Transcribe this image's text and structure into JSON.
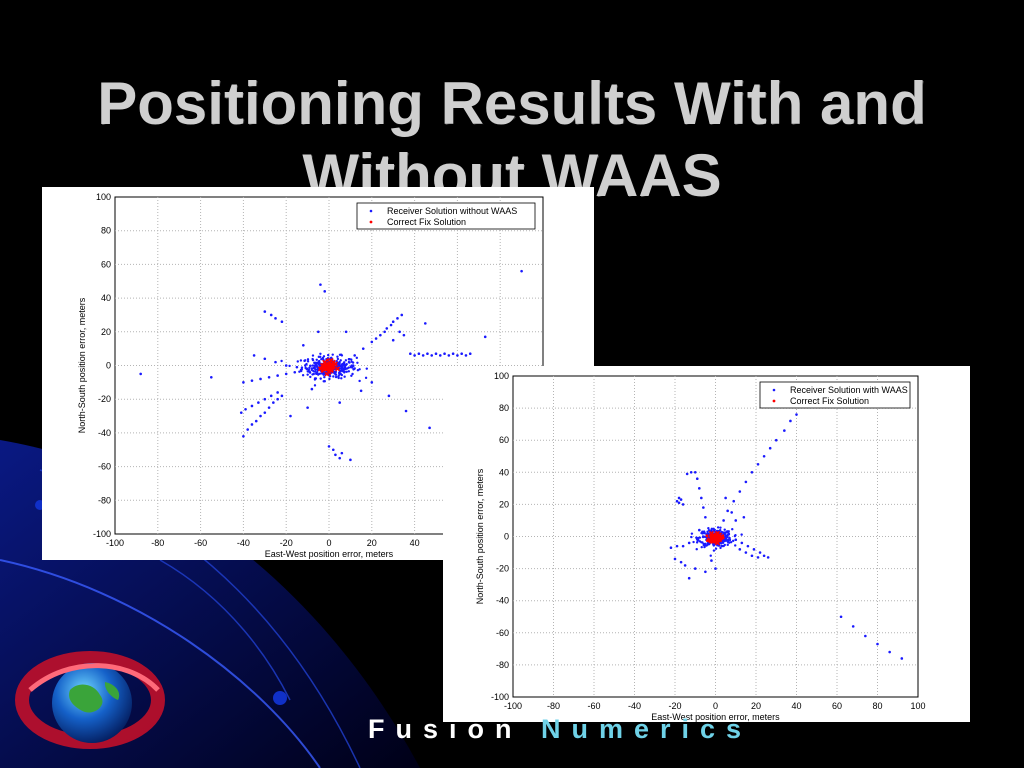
{
  "slide": {
    "title_line1": "Positioning Results With and",
    "title_line2": "Without WAAS"
  },
  "brand": {
    "word1": "Fusion",
    "word2": "Numerics"
  },
  "colors": {
    "background": "#000000",
    "title": "#cfcfcf",
    "receiver_points": "#1a1aff",
    "correct_fix": "#ff0000",
    "grid": "#b4b4b4"
  },
  "chart_data": [
    {
      "type": "scatter",
      "xlabel": "East-West position error, meters",
      "ylabel": "North-South position error, meters",
      "xlim": [
        -100,
        100
      ],
      "ylim": [
        -100,
        100
      ],
      "xticks": [
        "-100",
        "-80",
        "-60",
        "-40",
        "-20",
        "0",
        "20",
        "40",
        "60",
        "80",
        "100"
      ],
      "yticks": [
        "100",
        "80",
        "60",
        "40",
        "20",
        "0",
        "-20",
        "-40",
        "-60",
        "-80",
        "-100"
      ],
      "grid": true,
      "legend_position": "top-right",
      "series": [
        {
          "name": "Receiver Solution without WAAS",
          "color": "#1a1aff",
          "marker": "dot",
          "points": [
            [
              -88,
              -5
            ],
            [
              -55,
              -7
            ],
            [
              -4,
              48
            ],
            [
              -2,
              44
            ],
            [
              -30,
              32
            ],
            [
              -27,
              30
            ],
            [
              -25,
              28
            ],
            [
              -22,
              26
            ],
            [
              -40,
              -42
            ],
            [
              -38,
              -38
            ],
            [
              -36,
              -35
            ],
            [
              -34,
              -33
            ],
            [
              -32,
              -30
            ],
            [
              -30,
              -28
            ],
            [
              -28,
              -25
            ],
            [
              -26,
              -22
            ],
            [
              -24,
              -20
            ],
            [
              -22,
              -18
            ],
            [
              -41,
              -28
            ],
            [
              -39,
              -26
            ],
            [
              -36,
              -24
            ],
            [
              -33,
              -22
            ],
            [
              -30,
              -20
            ],
            [
              -27,
              -18
            ],
            [
              -24,
              -16
            ],
            [
              -40,
              -10
            ],
            [
              -36,
              -9
            ],
            [
              -32,
              -8
            ],
            [
              -28,
              -7
            ],
            [
              -24,
              -6
            ],
            [
              -20,
              -5
            ],
            [
              -16,
              -4
            ],
            [
              -35,
              6
            ],
            [
              -30,
              4
            ],
            [
              -25,
              2
            ],
            [
              -20,
              0
            ],
            [
              -15,
              -1
            ],
            [
              0,
              -48
            ],
            [
              2,
              -50
            ],
            [
              3,
              -53
            ],
            [
              5,
              -55
            ],
            [
              6,
              -52
            ],
            [
              10,
              -56
            ],
            [
              12,
              6
            ],
            [
              16,
              10
            ],
            [
              20,
              14
            ],
            [
              24,
              18
            ],
            [
              27,
              22
            ],
            [
              30,
              26
            ],
            [
              32,
              28
            ],
            [
              34,
              30
            ],
            [
              22,
              16
            ],
            [
              26,
              20
            ],
            [
              29,
              24
            ],
            [
              33,
              20
            ],
            [
              35,
              18
            ],
            [
              30,
              15
            ],
            [
              38,
              7
            ],
            [
              42,
              7
            ],
            [
              46,
              7
            ],
            [
              50,
              7
            ],
            [
              54,
              7
            ],
            [
              58,
              7
            ],
            [
              62,
              7
            ],
            [
              66,
              7
            ],
            [
              40,
              6
            ],
            [
              44,
              6
            ],
            [
              48,
              6
            ],
            [
              52,
              6
            ],
            [
              56,
              6
            ],
            [
              60,
              6
            ],
            [
              64,
              6
            ],
            [
              45,
              25
            ],
            [
              36,
              -27
            ],
            [
              47,
              -37
            ],
            [
              73,
              17
            ],
            [
              90,
              56
            ],
            [
              28,
              -18
            ],
            [
              -18,
              -30
            ],
            [
              -10,
              -25
            ],
            [
              -5,
              20
            ],
            [
              8,
              20
            ],
            [
              15,
              -15
            ],
            [
              20,
              -10
            ],
            [
              -12,
              12
            ],
            [
              -8,
              -14
            ],
            [
              5,
              -22
            ]
          ]
        },
        {
          "name": "Correct Fix Solution",
          "color": "#ff0000",
          "marker": "x",
          "points": [
            [
              -2,
              -2
            ],
            [
              0,
              0
            ],
            [
              2,
              -1
            ],
            [
              -1,
              1
            ],
            [
              1,
              -3
            ],
            [
              -3,
              0
            ],
            [
              3,
              1
            ],
            [
              0,
              -4
            ],
            [
              -2,
              2
            ],
            [
              2,
              2
            ],
            [
              -4,
              -2
            ],
            [
              4,
              -2
            ],
            [
              1,
              3
            ],
            [
              -1,
              -5
            ]
          ]
        }
      ],
      "core_cluster": {
        "center": [
          0,
          -1
        ],
        "spread_x": 14,
        "spread_y": 7
      }
    },
    {
      "type": "scatter",
      "xlabel": "East-West position error, meters",
      "ylabel": "North-South position error, meters",
      "xlim": [
        -100,
        100
      ],
      "ylim": [
        -100,
        100
      ],
      "xticks": [
        "-100",
        "-80",
        "-60",
        "-40",
        "-20",
        "0",
        "20",
        "40",
        "60",
        "80",
        "100"
      ],
      "yticks": [
        "100",
        "80",
        "60",
        "40",
        "20",
        "0",
        "-20",
        "-40",
        "-60",
        "-80",
        "-100"
      ],
      "grid": true,
      "legend_position": "top-right",
      "series": [
        {
          "name": "Receiver Solution with WAAS",
          "color": "#1a1aff",
          "marker": "dot",
          "points": [
            [
              40,
              76
            ],
            [
              37,
              72
            ],
            [
              34,
              66
            ],
            [
              30,
              60
            ],
            [
              27,
              55
            ],
            [
              24,
              50
            ],
            [
              21,
              45
            ],
            [
              18,
              40
            ],
            [
              15,
              34
            ],
            [
              12,
              28
            ],
            [
              9,
              22
            ],
            [
              6,
              16
            ],
            [
              4,
              10
            ],
            [
              -12,
              40
            ],
            [
              -14,
              39
            ],
            [
              -10,
              40
            ],
            [
              -9,
              36
            ],
            [
              -8,
              30
            ],
            [
              -7,
              24
            ],
            [
              -6,
              18
            ],
            [
              -5,
              12
            ],
            [
              -17,
              23
            ],
            [
              -18,
              21
            ],
            [
              -16,
              20
            ],
            [
              -18,
              24
            ],
            [
              -19,
              22
            ],
            [
              62,
              -50
            ],
            [
              68,
              -56
            ],
            [
              74,
              -62
            ],
            [
              80,
              -67
            ],
            [
              86,
              -72
            ],
            [
              92,
              -76
            ],
            [
              10,
              -2
            ],
            [
              13,
              -4
            ],
            [
              16,
              -6
            ],
            [
              19,
              -8
            ],
            [
              22,
              -10
            ],
            [
              24,
              -12
            ],
            [
              26,
              -13
            ],
            [
              12,
              -8
            ],
            [
              15,
              -10
            ],
            [
              18,
              -12
            ],
            [
              21,
              -13
            ],
            [
              -22,
              -7
            ],
            [
              -19,
              -6
            ],
            [
              -16,
              -6
            ],
            [
              -13,
              -4
            ],
            [
              -20,
              -14
            ],
            [
              -17,
              -16
            ],
            [
              -15,
              -18
            ],
            [
              -13,
              -26
            ],
            [
              -10,
              -20
            ],
            [
              -5,
              -22
            ],
            [
              0,
              -20
            ],
            [
              -2,
              -15
            ],
            [
              8,
              15
            ],
            [
              10,
              10
            ],
            [
              14,
              12
            ],
            [
              -8,
              4
            ],
            [
              5,
              24
            ]
          ]
        },
        {
          "name": "Correct Fix Solution",
          "color": "#ff0000",
          "marker": "x",
          "points": [
            [
              -2,
              -1
            ],
            [
              0,
              0
            ],
            [
              2,
              -2
            ],
            [
              -1,
              1
            ],
            [
              1,
              2
            ],
            [
              -3,
              -2
            ],
            [
              3,
              0
            ],
            [
              0,
              -3
            ],
            [
              -2,
              2
            ],
            [
              2,
              1
            ],
            [
              1,
              -4
            ],
            [
              -1,
              -3
            ]
          ]
        }
      ],
      "core_cluster": {
        "center": [
          0,
          -1
        ],
        "spread_x": 9,
        "spread_y": 6
      }
    }
  ]
}
